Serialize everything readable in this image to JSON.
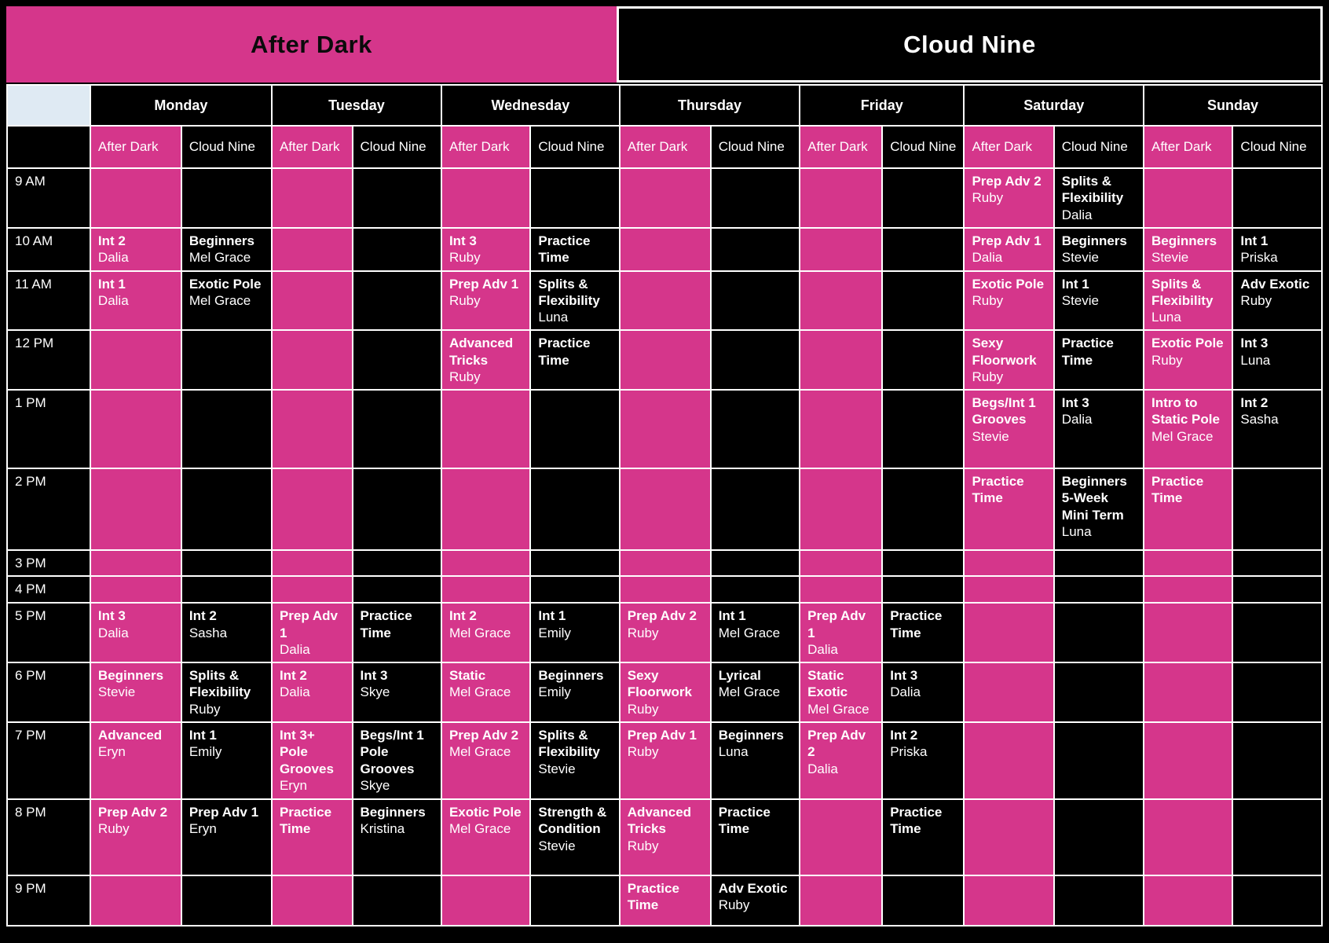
{
  "banner": {
    "after_dark": "After Dark",
    "cloud_nine": "Cloud Nine"
  },
  "colors": {
    "pink": "#d5368b",
    "black": "#000000",
    "corner": "#dfeaf3",
    "border": "#ffffff"
  },
  "locations": [
    "After Dark",
    "Cloud Nine"
  ],
  "days": [
    "Monday",
    "Tuesday",
    "Wednesday",
    "Thursday",
    "Friday",
    "Saturday",
    "Sunday"
  ],
  "times": [
    "9 AM",
    "10 AM",
    "11 AM",
    "12 PM",
    "1 PM",
    "2 PM",
    "3 PM",
    "4 PM",
    "5 PM",
    "6 PM",
    "7 PM",
    "8 PM",
    "9 PM"
  ],
  "rows": [
    {
      "time": "9 AM",
      "cells": [
        null,
        null,
        null,
        null,
        null,
        null,
        null,
        null,
        null,
        null,
        {
          "c": "Prep Adv 2",
          "n": "Ruby"
        },
        {
          "c": "Splits & Flexibility",
          "n": "Dalia"
        },
        null,
        null
      ]
    },
    {
      "time": "10 AM",
      "cells": [
        {
          "c": "Int 2",
          "n": "Dalia"
        },
        {
          "c": "Beginners",
          "n": "Mel Grace"
        },
        null,
        null,
        {
          "c": "Int 3",
          "n": "Ruby"
        },
        {
          "c": "Practice Time",
          "n": ""
        },
        null,
        null,
        null,
        null,
        {
          "c": "Prep Adv 1",
          "n": "Dalia"
        },
        {
          "c": "Beginners",
          "n": "Stevie"
        },
        {
          "c": "Beginners",
          "n": "Stevie"
        },
        {
          "c": "Int 1",
          "n": "Priska"
        }
      ]
    },
    {
      "time": "11 AM",
      "cells": [
        {
          "c": "Int 1",
          "n": "Dalia"
        },
        {
          "c": "Exotic Pole",
          "n": "Mel Grace"
        },
        null,
        null,
        {
          "c": "Prep Adv 1",
          "n": "Ruby"
        },
        {
          "c": "Splits & Flexibility",
          "n": "Luna"
        },
        null,
        null,
        null,
        null,
        {
          "c": "Exotic Pole",
          "n": "Ruby"
        },
        {
          "c": "Int 1",
          "n": "Stevie"
        },
        {
          "c": "Splits & Flexibility",
          "n": "Luna"
        },
        {
          "c": "Adv Exotic",
          "n": "Ruby"
        }
      ]
    },
    {
      "time": "12 PM",
      "cells": [
        null,
        null,
        null,
        null,
        {
          "c": "Advanced Tricks",
          "n": "Ruby"
        },
        {
          "c": "Practice Time",
          "n": ""
        },
        null,
        null,
        null,
        null,
        {
          "c": "Sexy Floorwork",
          "n": "Ruby"
        },
        {
          "c": "Practice Time",
          "n": ""
        },
        {
          "c": "Exotic Pole",
          "n": "Ruby"
        },
        {
          "c": "Int 3",
          "n": "Luna"
        }
      ]
    },
    {
      "time": "1 PM",
      "cells": [
        null,
        null,
        null,
        null,
        null,
        null,
        null,
        null,
        null,
        null,
        {
          "c": "Begs/Int 1 Grooves",
          "n": "Stevie"
        },
        {
          "c": "Int 3",
          "n": "Dalia"
        },
        {
          "c": "Intro to Static Pole",
          "n": "Mel Grace"
        },
        {
          "c": "Int 2",
          "n": "Sasha"
        }
      ]
    },
    {
      "time": "2 PM",
      "cells": [
        null,
        null,
        null,
        null,
        null,
        null,
        null,
        null,
        null,
        null,
        {
          "c": "Practice Time",
          "n": ""
        },
        {
          "c": "Beginners 5-Week Mini Term",
          "n": "Luna"
        },
        {
          "c": "Practice Time",
          "n": ""
        },
        null
      ]
    },
    {
      "time": "3 PM",
      "cells": [
        null,
        null,
        null,
        null,
        null,
        null,
        null,
        null,
        null,
        null,
        null,
        null,
        null,
        null
      ]
    },
    {
      "time": "4 PM",
      "cells": [
        null,
        null,
        null,
        null,
        null,
        null,
        null,
        null,
        null,
        null,
        null,
        null,
        null,
        null
      ]
    },
    {
      "time": "5 PM",
      "cells": [
        {
          "c": "Int 3",
          "n": "Dalia"
        },
        {
          "c": "Int 2",
          "n": "Sasha"
        },
        {
          "c": "Prep Adv 1",
          "n": "Dalia"
        },
        {
          "c": "Practice Time",
          "n": ""
        },
        {
          "c": "Int 2",
          "n": "Mel Grace"
        },
        {
          "c": "Int 1",
          "n": "Emily"
        },
        {
          "c": "Prep Adv 2",
          "n": "Ruby"
        },
        {
          "c": "Int 1",
          "n": "Mel Grace"
        },
        {
          "c": "Prep Adv 1",
          "n": "Dalia"
        },
        {
          "c": "Practice Time",
          "n": ""
        },
        null,
        null,
        null,
        null
      ]
    },
    {
      "time": "6 PM",
      "cells": [
        {
          "c": "Beginners",
          "n": "Stevie"
        },
        {
          "c": "Splits & Flexibility",
          "n": "Ruby"
        },
        {
          "c": "Int 2",
          "n": "Dalia"
        },
        {
          "c": "Int 3",
          "n": "Skye"
        },
        {
          "c": "Static",
          "n": "Mel Grace"
        },
        {
          "c": "Beginners",
          "n": "Emily"
        },
        {
          "c": "Sexy Floorwork",
          "n": "Ruby"
        },
        {
          "c": "Lyrical",
          "n": "Mel Grace"
        },
        {
          "c": "Static Exotic",
          "n": "Mel Grace"
        },
        {
          "c": "Int 3",
          "n": "Dalia"
        },
        null,
        null,
        null,
        null
      ]
    },
    {
      "time": "7 PM",
      "cells": [
        {
          "c": "Advanced",
          "n": "Eryn"
        },
        {
          "c": "Int 1",
          "n": "Emily"
        },
        {
          "c": "Int 3+ Pole Grooves",
          "n": "Eryn"
        },
        {
          "c": "Begs/Int 1 Pole Grooves",
          "n": "Skye"
        },
        {
          "c": "Prep Adv 2",
          "n": "Mel Grace"
        },
        {
          "c": "Splits & Flexibility",
          "n": "Stevie"
        },
        {
          "c": "Prep Adv 1",
          "n": "Ruby"
        },
        {
          "c": "Beginners",
          "n": "Luna"
        },
        {
          "c": "Prep Adv 2",
          "n": "Dalia"
        },
        {
          "c": "Int 2",
          "n": "Priska"
        },
        null,
        null,
        null,
        null
      ]
    },
    {
      "time": "8 PM",
      "cells": [
        {
          "c": "Prep Adv 2",
          "n": "Ruby"
        },
        {
          "c": "Prep Adv 1",
          "n": "Eryn"
        },
        {
          "c": "Practice Time",
          "n": ""
        },
        {
          "c": "Beginners",
          "n": "Kristina"
        },
        {
          "c": "Exotic Pole",
          "n": "Mel Grace"
        },
        {
          "c": "Strength & Condition",
          "n": "Stevie"
        },
        {
          "c": "Advanced Tricks",
          "n": "Ruby"
        },
        {
          "c": "Practice Time",
          "n": ""
        },
        null,
        {
          "c": "Practice Time",
          "n": ""
        },
        null,
        null,
        null,
        null
      ]
    },
    {
      "time": "9 PM",
      "cells": [
        null,
        null,
        null,
        null,
        null,
        null,
        {
          "c": "Practice Time",
          "n": ""
        },
        {
          "c": "Adv Exotic",
          "n": "Ruby"
        },
        null,
        null,
        null,
        null,
        null,
        null
      ]
    }
  ]
}
